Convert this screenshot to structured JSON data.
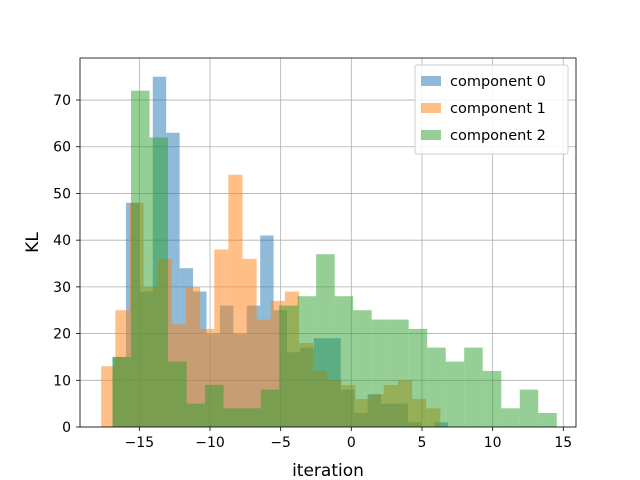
{
  "chart_data": {
    "type": "histogram",
    "xlabel": "iteration",
    "ylabel": "KL",
    "xlim": [
      -19.2,
      15.9
    ],
    "ylim": [
      0,
      79
    ],
    "xticks": [
      -15,
      -10,
      -5,
      0,
      5,
      10,
      15
    ],
    "xtick_labels": [
      "−15",
      "−10",
      "−5",
      "0",
      "5",
      "10",
      "15"
    ],
    "yticks": [
      0,
      10,
      20,
      30,
      40,
      50,
      60,
      70
    ],
    "ytick_labels": [
      "0",
      "10",
      "20",
      "30",
      "40",
      "50",
      "60",
      "70"
    ],
    "grid": true,
    "legend_position": "upper right",
    "series": [
      {
        "name": "component 0",
        "color": "#1f77b4",
        "alpha": 0.5,
        "bin_start": -16.9,
        "bin_width": 0.95,
        "counts": [
          15,
          48,
          29,
          75,
          63,
          34,
          29,
          20,
          26,
          20,
          26,
          41,
          25,
          16,
          17,
          19,
          19,
          8,
          3,
          7,
          5,
          5,
          1,
          0,
          1
        ]
      },
      {
        "name": "component 1",
        "color": "#ff7f0e",
        "alpha": 0.5,
        "bin_start": -17.7,
        "bin_width": 1.0,
        "counts": [
          13,
          25,
          48,
          30,
          36,
          22,
          30,
          21,
          38,
          54,
          36,
          23,
          27,
          29,
          18,
          12,
          10,
          9,
          6,
          7,
          9,
          10,
          6,
          4
        ]
      },
      {
        "name": "component 2",
        "color": "#2ca02c",
        "alpha": 0.5,
        "bin_start": -16.9,
        "bin_width": 1.31,
        "counts": [
          15,
          72,
          62,
          14,
          5,
          9,
          4,
          4,
          8,
          26,
          28,
          37,
          28,
          25,
          23,
          23,
          21,
          17,
          14,
          17,
          12,
          4,
          8,
          3
        ]
      }
    ]
  }
}
